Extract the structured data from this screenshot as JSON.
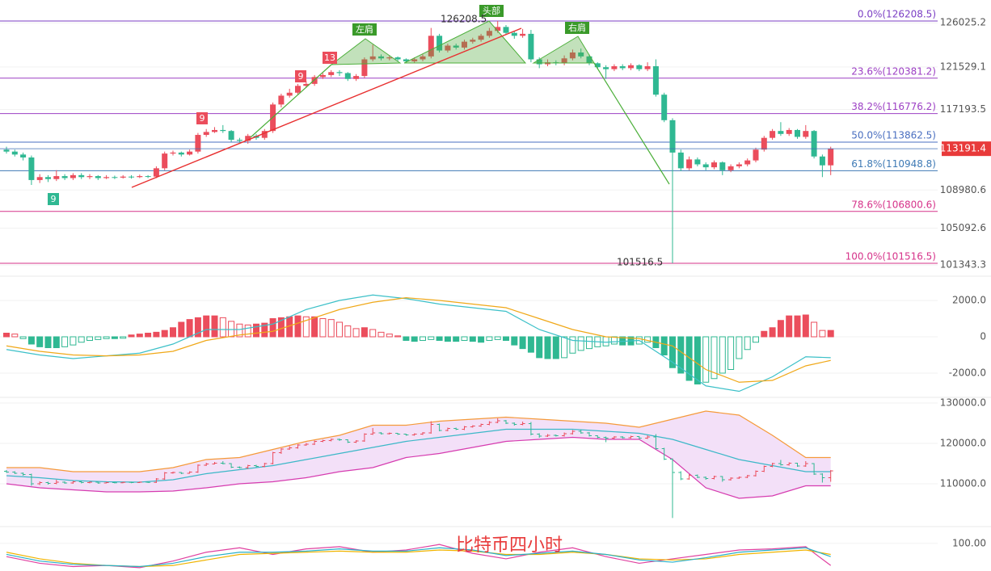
{
  "chart_data": {
    "type": "candlestick",
    "title": "比特币四小时",
    "up_color": "#eb4d5c",
    "down_color": "#2fb892",
    "ylim": [
      100364,
      128348
    ],
    "yticks": [
      126025.2,
      121529.1,
      117193.5,
      108980.6,
      105092.6,
      101343.3
    ],
    "last_price": 113191.4,
    "high_label": 126208.5,
    "low_label": 101516.5,
    "patterns": [
      "左肩",
      "头部",
      "右肩"
    ],
    "td_marks": [
      "9",
      "9",
      "9",
      "13"
    ],
    "fib_levels": [
      {
        "label": "0.0%(126208.5)",
        "value": 126208.5,
        "color": "#7b3fc4"
      },
      {
        "label": "23.6%(120381.2)",
        "value": 120381.2,
        "color": "#9c3fc4"
      },
      {
        "label": "38.2%(116776.2)",
        "value": 116776.2,
        "color": "#9c3fc4"
      },
      {
        "label": "50.0%(113862.5)",
        "value": 113862.5,
        "color": "#4a6fc0"
      },
      {
        "label": "61.8%(110948.8)",
        "value": 110948.8,
        "color": "#3f7ab5"
      },
      {
        "label": "78.6%(106800.6)",
        "value": 106800.6,
        "color": "#d6338a"
      },
      {
        "label": "100.0%(101516.5)",
        "value": 101516.5,
        "color": "#d6338a"
      }
    ],
    "candles": [
      [
        113100,
        113400,
        112700,
        112900
      ],
      [
        112900,
        113100,
        112400,
        112600
      ],
      [
        112600,
        112800,
        112000,
        112300
      ],
      [
        112300,
        112500,
        109500,
        110000
      ],
      [
        110000,
        110600,
        109700,
        110300
      ],
      [
        110300,
        110500,
        109800,
        110100
      ],
      [
        110100,
        111000,
        109900,
        110400
      ],
      [
        110400,
        110600,
        110000,
        110200
      ],
      [
        110200,
        110700,
        110000,
        110500
      ],
      [
        110500,
        110700,
        110100,
        110300
      ],
      [
        110300,
        110600,
        110100,
        110400
      ],
      [
        110400,
        110500,
        110000,
        110200
      ],
      [
        110200,
        110500,
        110100,
        110300
      ],
      [
        110300,
        110450,
        110100,
        110250
      ],
      [
        110250,
        110500,
        110150,
        110350
      ],
      [
        110350,
        110500,
        110150,
        110300
      ],
      [
        110300,
        110550,
        110200,
        110400
      ],
      [
        110400,
        110500,
        110200,
        110350
      ],
      [
        110350,
        111400,
        110200,
        111200
      ],
      [
        111200,
        112900,
        111000,
        112700
      ],
      [
        112700,
        113000,
        112500,
        112800
      ],
      [
        112800,
        112900,
        112400,
        112600
      ],
      [
        112600,
        113100,
        112500,
        112900
      ],
      [
        112900,
        114800,
        112700,
        114600
      ],
      [
        114600,
        115200,
        114400,
        114900
      ],
      [
        114900,
        115400,
        114800,
        115100
      ],
      [
        115100,
        115600,
        114800,
        115000
      ],
      [
        115000,
        115100,
        113900,
        114100
      ],
      [
        114100,
        114300,
        113800,
        114000
      ],
      [
        114000,
        114700,
        113700,
        114500
      ],
      [
        114500,
        114700,
        114100,
        114300
      ],
      [
        114300,
        115200,
        114100,
        115000
      ],
      [
        115000,
        117900,
        114800,
        117700
      ],
      [
        117700,
        118800,
        117400,
        118600
      ],
      [
        118600,
        119300,
        118400,
        118900
      ],
      [
        118900,
        119800,
        118700,
        119600
      ],
      [
        119600,
        120100,
        119400,
        119800
      ],
      [
        119800,
        120700,
        119600,
        120500
      ],
      [
        120500,
        120900,
        120300,
        120700
      ],
      [
        120700,
        121200,
        120500,
        121000
      ],
      [
        121000,
        121200,
        120600,
        120900
      ],
      [
        120900,
        121000,
        120100,
        120300
      ],
      [
        120300,
        120800,
        120100,
        120600
      ],
      [
        120600,
        122500,
        120400,
        122300
      ],
      [
        122300,
        123800,
        122100,
        122600
      ],
      [
        122600,
        122800,
        122200,
        122400
      ],
      [
        122400,
        122700,
        122200,
        122500
      ],
      [
        122500,
        122600,
        122100,
        122300
      ],
      [
        122300,
        122400,
        121900,
        122100
      ],
      [
        122100,
        122500,
        121900,
        122300
      ],
      [
        122300,
        122800,
        122100,
        122600
      ],
      [
        122600,
        125500,
        122400,
        124700
      ],
      [
        124700,
        124900,
        123000,
        123200
      ],
      [
        123200,
        123900,
        123000,
        123700
      ],
      [
        123700,
        123900,
        123300,
        123500
      ],
      [
        123500,
        124300,
        123300,
        124100
      ],
      [
        124100,
        124500,
        123900,
        124300
      ],
      [
        124300,
        124900,
        124100,
        124700
      ],
      [
        124700,
        125500,
        124500,
        125200
      ],
      [
        125200,
        126208.5,
        125000,
        125600
      ],
      [
        125600,
        125800,
        124800,
        125000
      ],
      [
        125000,
        125200,
        124400,
        124700
      ],
      [
        124700,
        125400,
        124500,
        124900
      ],
      [
        124900,
        125300,
        122000,
        122300
      ],
      [
        122300,
        122500,
        121400,
        121800
      ],
      [
        121800,
        122300,
        121600,
        122000
      ],
      [
        122000,
        122200,
        121700,
        121900
      ],
      [
        121900,
        122700,
        121700,
        122400
      ],
      [
        122400,
        123300,
        122200,
        123000
      ],
      [
        123000,
        123400,
        122400,
        122600
      ],
      [
        122600,
        122800,
        121700,
        121900
      ],
      [
        121900,
        122000,
        121300,
        121500
      ],
      [
        121500,
        121700,
        120300,
        121300
      ],
      [
        121300,
        121800,
        121100,
        121600
      ],
      [
        121600,
        121800,
        121200,
        121400
      ],
      [
        121400,
        121900,
        121200,
        121700
      ],
      [
        121700,
        121800,
        121100,
        121300
      ],
      [
        121300,
        122000,
        121100,
        121600
      ],
      [
        121600,
        122300,
        118500,
        118700
      ],
      [
        118700,
        118900,
        115900,
        116100
      ],
      [
        116100,
        116300,
        101516.5,
        112800
      ],
      [
        112800,
        113100,
        110900,
        111200
      ],
      [
        111200,
        112400,
        111000,
        112100
      ],
      [
        112100,
        112300,
        111400,
        111600
      ],
      [
        111600,
        111800,
        111000,
        111300
      ],
      [
        111300,
        112000,
        111100,
        111800
      ],
      [
        111800,
        111900,
        110500,
        111000
      ],
      [
        111000,
        111600,
        110800,
        111400
      ],
      [
        111400,
        111800,
        111200,
        111600
      ],
      [
        111600,
        112200,
        111400,
        112000
      ],
      [
        112000,
        113300,
        111800,
        113100
      ],
      [
        113100,
        114500,
        112900,
        114300
      ],
      [
        114300,
        115200,
        114100,
        115000
      ],
      [
        115000,
        115900,
        114500,
        114700
      ],
      [
        114700,
        115300,
        114500,
        115100
      ],
      [
        115100,
        115200,
        114200,
        114400
      ],
      [
        114400,
        115600,
        114200,
        115000
      ],
      [
        115000,
        115100,
        112200,
        112400
      ],
      [
        112400,
        112600,
        110300,
        111500
      ],
      [
        111500,
        113400,
        110500,
        113191.4
      ]
    ],
    "macd": {
      "ylim": [
        -3200,
        3200
      ],
      "yticks": [
        {
          "value": 2000,
          "label": "2000.0"
        },
        0,
        {
          "value": -2000,
          "label": "-2000.0"
        }
      ],
      "up_color": "#eb4d5c",
      "down_color": "#2fb892",
      "dif_color": "#3cc0c8",
      "dea_color": "#f0a818",
      "histogram": [
        200,
        150,
        -100,
        -400,
        -550,
        -600,
        -600,
        -550,
        -450,
        -300,
        -200,
        -150,
        -100,
        -100,
        -80,
        100,
        150,
        200,
        250,
        350,
        500,
        800,
        950,
        1050,
        1150,
        1150,
        1050,
        850,
        700,
        650,
        700,
        750,
        1000,
        1050,
        1100,
        1150,
        1100,
        1100,
        1000,
        950,
        800,
        600,
        450,
        500,
        400,
        250,
        150,
        50,
        -200,
        -250,
        -200,
        -150,
        -200,
        -250,
        -250,
        -200,
        -250,
        -300,
        -200,
        -150,
        -200,
        -450,
        -650,
        -850,
        -1150,
        -1200,
        -1200,
        -1150,
        -900,
        -750,
        -650,
        -550,
        -500,
        -400,
        -450,
        -450,
        -400,
        -300,
        -600,
        -1000,
        -1700,
        -2000,
        -2400,
        -2600,
        -2500,
        -2300,
        -2000,
        -1800,
        -1200,
        -700,
        -300,
        300,
        500,
        900,
        1150,
        1150,
        1200,
        800,
        350,
        350
      ],
      "x": [
        0,
        4,
        8,
        12,
        16,
        20,
        24,
        28,
        32,
        36,
        40,
        44,
        48,
        52,
        56,
        60,
        64,
        68,
        72,
        76,
        80,
        84,
        88,
        92,
        96,
        99
      ],
      "dif": [
        -700,
        -1000,
        -1200,
        -1050,
        -900,
        -400,
        400,
        400,
        700,
        1500,
        2000,
        2300,
        2100,
        1800,
        1600,
        1400,
        400,
        -200,
        -300,
        -200,
        -1400,
        -2700,
        -3000,
        -2200,
        -1100,
        -1150
      ],
      "dea": [
        -500,
        -800,
        -1000,
        -1050,
        -1000,
        -800,
        -200,
        100,
        300,
        900,
        1500,
        1900,
        2150,
        2000,
        1800,
        1600,
        1000,
        400,
        0,
        -100,
        -500,
        -1800,
        -2500,
        -2400,
        -1600,
        -1300
      ]
    },
    "boll": {
      "ylim": [
        99800,
        130800
      ],
      "yticks": [
        {
          "value": 130000,
          "label": "130000.0"
        },
        {
          "value": 120000,
          "label": "120000.0"
        },
        {
          "value": 110000,
          "label": "110000.0"
        }
      ],
      "upper_color": "#f59a3a",
      "middle_color": "#3cb8c8",
      "lower_color": "#d63cb0",
      "fill": "#f3e0f8",
      "x": [
        0,
        4,
        8,
        12,
        16,
        20,
        24,
        28,
        32,
        36,
        40,
        44,
        48,
        52,
        56,
        60,
        64,
        68,
        72,
        76,
        80,
        84,
        88,
        92,
        96,
        99
      ],
      "upper": [
        114000,
        114000,
        113000,
        113000,
        113000,
        114000,
        116000,
        116500,
        118500,
        120500,
        122000,
        124500,
        124500,
        125500,
        126000,
        126500,
        126000,
        125500,
        125000,
        124000,
        126000,
        128000,
        127000,
        122000,
        116500,
        116500
      ],
      "middle": [
        112000,
        111500,
        110800,
        110500,
        110400,
        111000,
        112500,
        113500,
        114500,
        116000,
        117500,
        119000,
        120500,
        121500,
        122500,
        123500,
        123500,
        123500,
        123000,
        122500,
        121000,
        118500,
        116000,
        114500,
        113000,
        113000
      ],
      "lower": [
        110000,
        109000,
        108500,
        108000,
        108000,
        108200,
        109000,
        110000,
        110500,
        111500,
        113000,
        114000,
        116500,
        117500,
        119000,
        120500,
        121000,
        121500,
        121000,
        121000,
        116000,
        109000,
        106400,
        107000,
        109500,
        109500
      ]
    },
    "rsi": {
      "ylim": [
        75,
        113
      ],
      "yticks": [
        {
          "value": 100,
          "label": "100.00"
        }
      ],
      "x": [
        0,
        4,
        8,
        12,
        16,
        20,
        24,
        28,
        32,
        36,
        40,
        44,
        48,
        52,
        56,
        60,
        64,
        68,
        72,
        76,
        80,
        84,
        88,
        92,
        96,
        99
      ],
      "lines": [
        {
          "color": "#e040a0",
          "values": [
            88,
            82,
            79,
            80,
            78,
            84,
            92,
            96,
            90,
            95,
            97,
            92,
            94,
            99,
            91,
            86,
            92,
            96,
            88,
            82,
            86,
            90,
            94,
            95,
            97,
            80
          ]
        },
        {
          "color": "#f0b400",
          "values": [
            92,
            86,
            82,
            80,
            79,
            80,
            85,
            90,
            91,
            92,
            93,
            92,
            92,
            94,
            93,
            90,
            90,
            92,
            90,
            86,
            85,
            86,
            90,
            92,
            94,
            90
          ]
        },
        {
          "color": "#2ab0c8",
          "values": [
            90,
            84,
            81,
            80,
            79,
            82,
            88,
            92,
            92,
            93,
            95,
            93,
            93,
            96,
            94,
            89,
            91,
            93,
            90,
            85,
            83,
            87,
            92,
            94,
            96,
            88
          ]
        }
      ]
    }
  }
}
